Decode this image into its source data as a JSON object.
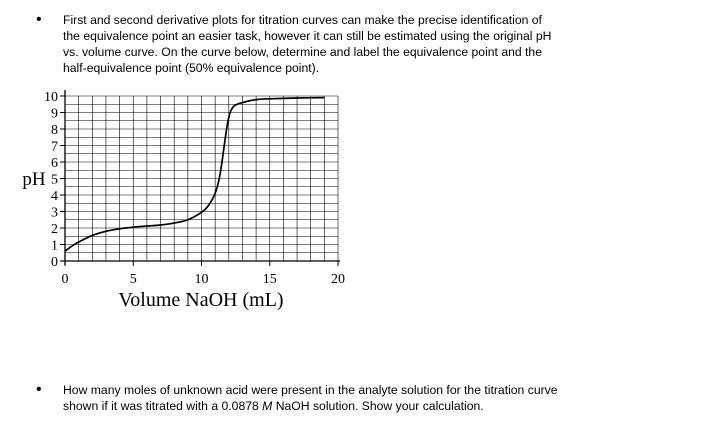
{
  "question1": {
    "bullet": "•",
    "lines": [
      "First and second derivative plots for titration curves can make the precise identification of",
      "the equivalence point an easier task, however it can still be estimated using the original pH",
      "vs. volume curve.  On the curve below, determine and label the equivalence point and the",
      "half-equivalence point (50% equivalence point)."
    ]
  },
  "question2": {
    "bullet": "•",
    "line1": "How many moles of unknown acid were present in the analyte solution for the titration curve",
    "line2_before": "shown if it was titrated with a 0.0878 ",
    "line2_unit": "M",
    "line2_after": " NaOH solution.  Show your calculation."
  },
  "chart_data": {
    "type": "line",
    "title": "",
    "xlabel": "Volume NaOH (mL)",
    "ylabel": "pH",
    "xlim": [
      0,
      20
    ],
    "ylim": [
      0,
      10
    ],
    "grid": true,
    "x_ticks": [
      0,
      5,
      10,
      15,
      20
    ],
    "y_ticks": [
      0,
      1,
      2,
      3,
      4,
      5,
      6,
      7,
      8,
      9,
      10
    ],
    "series": [
      {
        "x": [
          0,
          0.5,
          1,
          2,
          3,
          4,
          5,
          6,
          7,
          8,
          9,
          10,
          10.5,
          11,
          11.3,
          11.5,
          11.7,
          11.9,
          12.1,
          12.4,
          13,
          14,
          15,
          17,
          19
        ],
        "y": [
          0.6,
          0.9,
          1.15,
          1.55,
          1.8,
          1.95,
          2.05,
          2.12,
          2.18,
          2.3,
          2.5,
          2.95,
          3.35,
          4.1,
          5.0,
          6.0,
          7.2,
          8.3,
          9.0,
          9.4,
          9.6,
          9.78,
          9.83,
          9.88,
          9.9
        ]
      }
    ]
  }
}
